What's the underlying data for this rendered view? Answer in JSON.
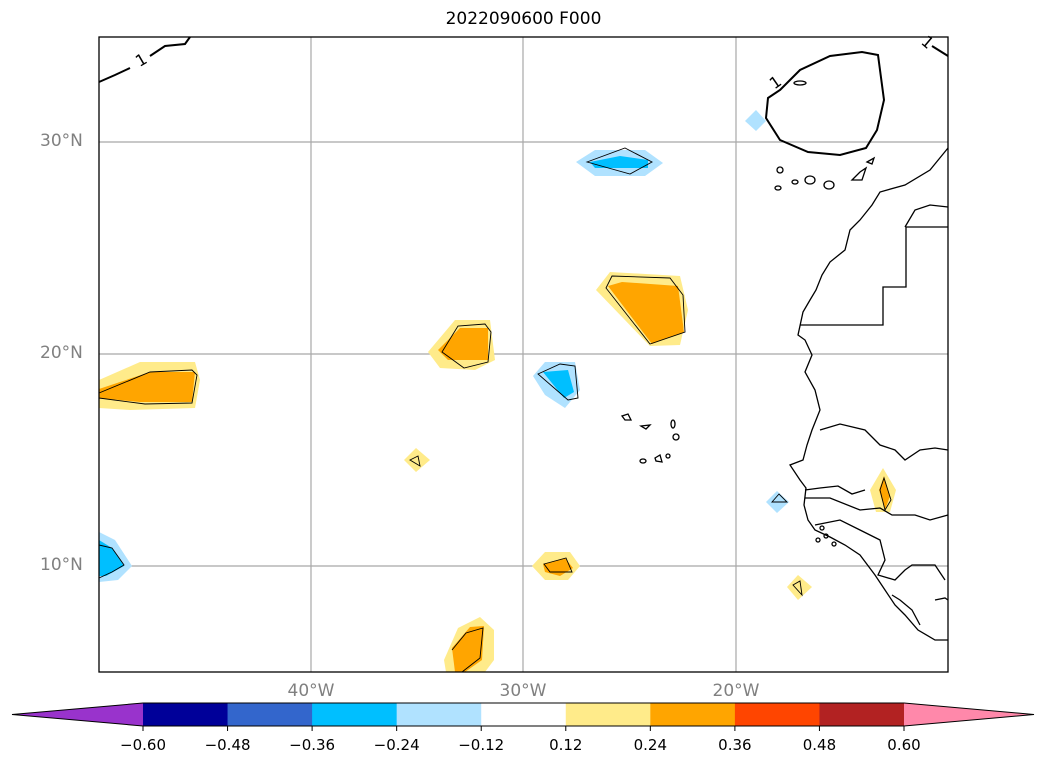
{
  "title": "2022090600 F000",
  "axes": {
    "lat_labels": [
      {
        "label": "30°N",
        "lat": 30
      },
      {
        "label": "20°N",
        "lat": 20
      },
      {
        "label": "10°N",
        "lat": 10
      }
    ],
    "lon_labels": [
      {
        "label": "40°W",
        "lon": -40
      },
      {
        "label": "30°W",
        "lon": -30
      },
      {
        "label": "20°W",
        "lon": -20
      }
    ],
    "lon_range": [
      -50,
      -10
    ],
    "lat_range": [
      5,
      35
    ],
    "grid": true
  },
  "contour_labels": [
    "1",
    "1",
    "1"
  ],
  "colorbar": {
    "levels": [
      -0.6,
      -0.48,
      -0.36,
      -0.24,
      -0.12,
      0.12,
      0.24,
      0.36,
      0.48,
      0.6
    ],
    "tick_labels": [
      "−0.60",
      "−0.48",
      "−0.36",
      "−0.24",
      "−0.12",
      "0.12",
      "0.24",
      "0.36",
      "0.48",
      "0.60"
    ],
    "colors": [
      "#9933cc",
      "#000099",
      "#3366cc",
      "#00bfff",
      "#b0e2ff",
      "#ffffff",
      "#ffeb8a",
      "#ffa500",
      "#ff4500",
      "#b22222",
      "#ff88aa"
    ],
    "extend": "both"
  }
}
